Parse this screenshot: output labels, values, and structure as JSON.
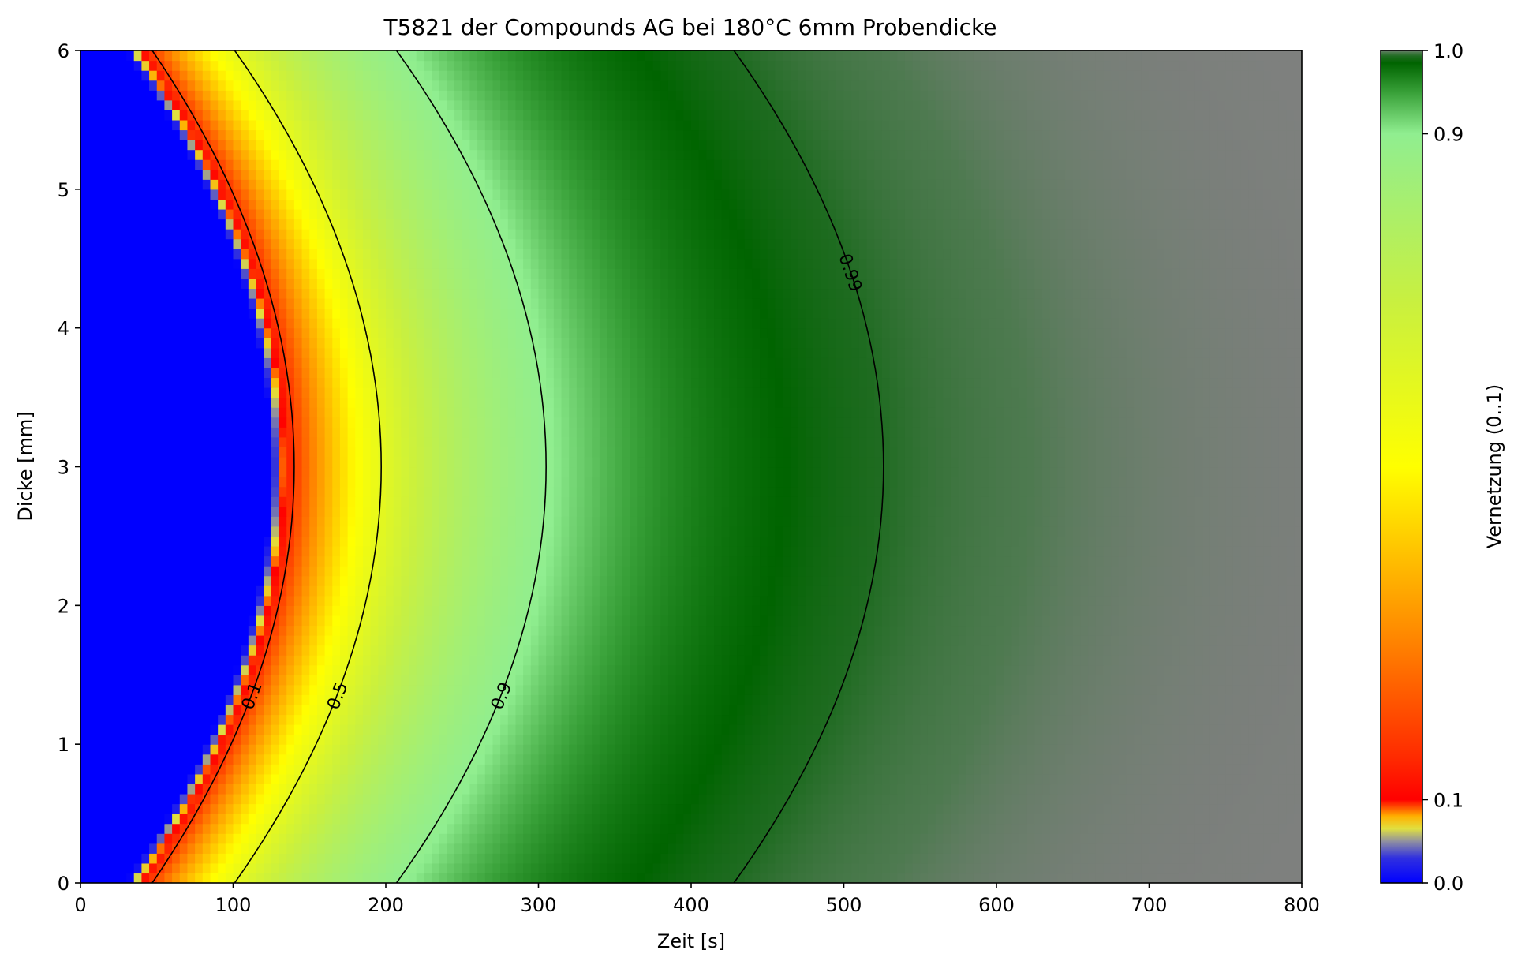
{
  "chart_data": {
    "type": "heatmap",
    "title": "T5821 der Compounds AG bei 180°C 6mm Probendicke",
    "xlabel": "Zeit [s]",
    "ylabel": "Dicke [mm]",
    "xlim": [
      0,
      800
    ],
    "ylim": [
      0,
      6
    ],
    "x_ticks": [
      "0",
      "100",
      "200",
      "300",
      "400",
      "500",
      "600",
      "700",
      "800"
    ],
    "y_ticks": [
      "0",
      "1",
      "2",
      "3",
      "4",
      "5",
      "6"
    ],
    "colorbar": {
      "label": "Vernetzung (0..1)",
      "ticks": [
        "0.0",
        "0.1",
        "0.9",
        "1.0"
      ],
      "range": [
        0,
        1
      ],
      "gradient": [
        {
          "v": 0.0,
          "color": "#0000ff"
        },
        {
          "v": 0.03,
          "color": "#3030e0"
        },
        {
          "v": 0.05,
          "color": "#9090a0"
        },
        {
          "v": 0.065,
          "color": "#e0e040"
        },
        {
          "v": 0.08,
          "color": "#ffb000"
        },
        {
          "v": 0.1,
          "color": "#ff0000"
        },
        {
          "v": 0.15,
          "color": "#ff2a00"
        },
        {
          "v": 0.3,
          "color": "#ff8a00"
        },
        {
          "v": 0.5,
          "color": "#ffff00"
        },
        {
          "v": 0.7,
          "color": "#c8f040"
        },
        {
          "v": 0.9,
          "color": "#90ee90"
        },
        {
          "v": 0.95,
          "color": "#38a038"
        },
        {
          "v": 0.985,
          "color": "#006400"
        },
        {
          "v": 0.993,
          "color": "#1e6b20"
        },
        {
          "v": 0.998,
          "color": "#4e7a50"
        },
        {
          "v": 1.0,
          "color": "#808080"
        }
      ]
    },
    "contours": [
      {
        "level": "0.1",
        "t_surface": 47,
        "t_center": 140,
        "label_y": 1.35
      },
      {
        "level": "0.5",
        "t_surface": 101,
        "t_center": 197,
        "label_y": 1.35
      },
      {
        "level": "0.9",
        "t_surface": 207,
        "t_center": 305,
        "label_y": 1.35
      },
      {
        "level": "0.99",
        "t_surface": 428,
        "t_center": 526,
        "label_y": 4.4
      }
    ],
    "model": {
      "description_free": true,
      "surface_onset_s": 30,
      "center_onset_s": 125
    }
  }
}
